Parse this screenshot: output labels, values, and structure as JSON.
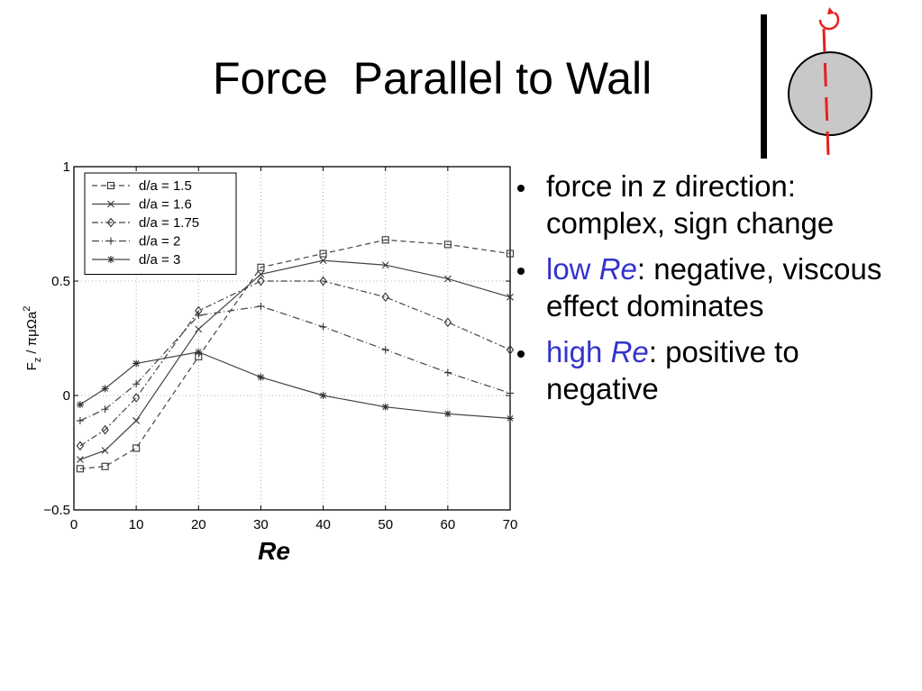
{
  "slide": {
    "title": "Force  Parallel to Wall"
  },
  "bullets": [
    {
      "text": "force in z direction: complex, sign change"
    },
    {
      "accent": "low ",
      "accent_italic": "Re",
      "rest": ": negative, viscous effect dominates"
    },
    {
      "accent": "high ",
      "accent_italic": "Re",
      "rest": ": positive to negative"
    }
  ],
  "colors": {
    "accent": "#3333cc",
    "diagram_line": "#e8201c",
    "sphere_fill": "#c8c8c8"
  },
  "chart_data": {
    "type": "line",
    "ylabel_parts": {
      "F": "F",
      "sub": "z",
      "rest": " / πμΩa",
      "sup": "2"
    },
    "xlabel": "Re",
    "xlim": [
      0,
      70
    ],
    "ylim": [
      -0.5,
      1
    ],
    "x_ticks": [
      0,
      10,
      20,
      30,
      40,
      50,
      60,
      70
    ],
    "y_ticks": [
      -0.5,
      0,
      0.5,
      1
    ],
    "y_tick_labels": [
      "−0.5",
      "0",
      "0.5",
      "1"
    ],
    "grid": true,
    "legend_position": "top-left",
    "x": [
      1,
      5,
      10,
      20,
      30,
      40,
      50,
      60,
      70
    ],
    "series": [
      {
        "name": "d/a = 1.5",
        "marker": "square",
        "dash": "6,4",
        "values": [
          -0.32,
          -0.31,
          -0.23,
          0.17,
          0.56,
          0.62,
          0.68,
          0.66,
          0.62
        ]
      },
      {
        "name": "d/a = 1.6",
        "marker": "x",
        "dash": "",
        "values": [
          -0.28,
          -0.24,
          -0.11,
          0.29,
          0.53,
          0.59,
          0.57,
          0.51,
          0.43
        ]
      },
      {
        "name": "d/a = 1.75",
        "marker": "diamond",
        "dash": "7,3,2,3",
        "values": [
          -0.22,
          -0.15,
          -0.01,
          0.37,
          0.5,
          0.5,
          0.43,
          0.32,
          0.2
        ]
      },
      {
        "name": "d/a = 2",
        "marker": "plus",
        "dash": "8,3,1,3",
        "values": [
          -0.11,
          -0.06,
          0.05,
          0.35,
          0.39,
          0.3,
          0.2,
          0.1,
          0.01
        ]
      },
      {
        "name": "d/a = 3",
        "marker": "star",
        "dash": "",
        "values": [
          -0.04,
          0.03,
          0.14,
          0.19,
          0.08,
          0.0,
          -0.05,
          -0.08,
          -0.1
        ]
      }
    ]
  }
}
